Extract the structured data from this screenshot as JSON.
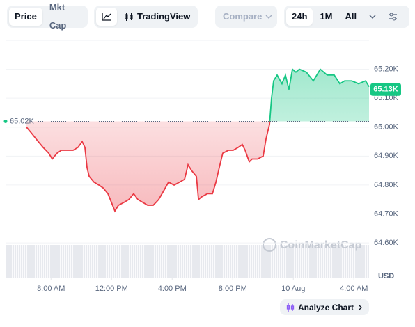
{
  "ui": {
    "tabs": [
      "Price",
      "Mkt Cap"
    ],
    "tradingview": "TradingView",
    "compare": "Compare",
    "ranges": [
      "24h",
      "1M",
      "All"
    ],
    "watermark": "CoinMarketCap",
    "currency": "USD",
    "analyze": "Analyze Chart"
  },
  "chart_data": {
    "type": "line",
    "up_color": "#16c784",
    "down_color": "#ea3943",
    "x": [
      6.38,
      6.7,
      7.16,
      7.48,
      7.85,
      8.08,
      8.4,
      8.68,
      9.0,
      9.46,
      9.78,
      10.06,
      10.24,
      10.38,
      10.52,
      10.84,
      11.16,
      11.44,
      11.76,
      11.99,
      12.22,
      12.45,
      12.82,
      13.14,
      13.46,
      13.74,
      14.06,
      14.38,
      14.75,
      15.11,
      15.44,
      15.76,
      16.13,
      16.49,
      16.82,
      17.05,
      17.28,
      17.6,
      17.74,
      17.97,
      18.33,
      18.66,
      18.89,
      19.11,
      19.34,
      19.71,
      20.03,
      20.36,
      20.63,
      20.82,
      21.09,
      21.28,
      21.64,
      22.01,
      22.2,
      22.43,
      22.56,
      22.7,
      22.93,
      23.25,
      23.48,
      23.71,
      23.94,
      24.17,
      24.4,
      24.86,
      25.32,
      25.55,
      25.78,
      26.24,
      26.7,
      27.07,
      27.39,
      27.85,
      28.31,
      28.77,
      29.0
    ],
    "values": [
      65.0,
      64.98,
      64.95,
      64.93,
      64.91,
      64.89,
      64.91,
      64.92,
      64.92,
      64.92,
      64.93,
      64.95,
      64.93,
      64.86,
      64.83,
      64.81,
      64.8,
      64.79,
      64.77,
      64.74,
      64.71,
      64.73,
      64.74,
      64.75,
      64.77,
      64.75,
      64.74,
      64.73,
      64.73,
      64.75,
      64.78,
      64.81,
      64.8,
      64.81,
      64.82,
      64.87,
      64.85,
      64.83,
      64.75,
      64.76,
      64.77,
      64.77,
      64.81,
      64.86,
      64.91,
      64.92,
      64.92,
      64.93,
      64.94,
      64.92,
      64.88,
      64.89,
      64.89,
      64.9,
      64.96,
      65.01,
      65.1,
      65.16,
      65.18,
      65.15,
      65.18,
      65.13,
      65.2,
      65.19,
      65.2,
      65.19,
      65.16,
      65.18,
      65.2,
      65.18,
      65.18,
      65.15,
      65.16,
      65.16,
      65.15,
      65.16,
      65.14
    ],
    "xlim": [
      5,
      29
    ],
    "xticks": [
      {
        "value": 8,
        "label": "8:00 AM"
      },
      {
        "value": 12,
        "label": "12:00 PM"
      },
      {
        "value": 16,
        "label": "4:00 PM"
      },
      {
        "value": 20,
        "label": "8:00 PM"
      },
      {
        "value": 24,
        "label": "10 Aug"
      },
      {
        "value": 28,
        "label": "4:00 AM"
      }
    ],
    "ylim": [
      64.48,
      65.3
    ],
    "yticks": [
      {
        "value": 64.6,
        "label": "64.60K"
      },
      {
        "value": 64.7,
        "label": "64.70K"
      },
      {
        "value": 64.8,
        "label": "64.80K"
      },
      {
        "value": 64.9,
        "label": "64.90K"
      },
      {
        "value": 65.0,
        "label": "65.00K"
      },
      {
        "value": 65.1,
        "label": "65.10K"
      },
      {
        "value": 65.2,
        "label": "65.20K"
      }
    ],
    "baseline": {
      "value": 65.02,
      "label": "65.02K"
    },
    "current": {
      "value": 65.13,
      "label": "65.13K"
    },
    "grid": true
  }
}
